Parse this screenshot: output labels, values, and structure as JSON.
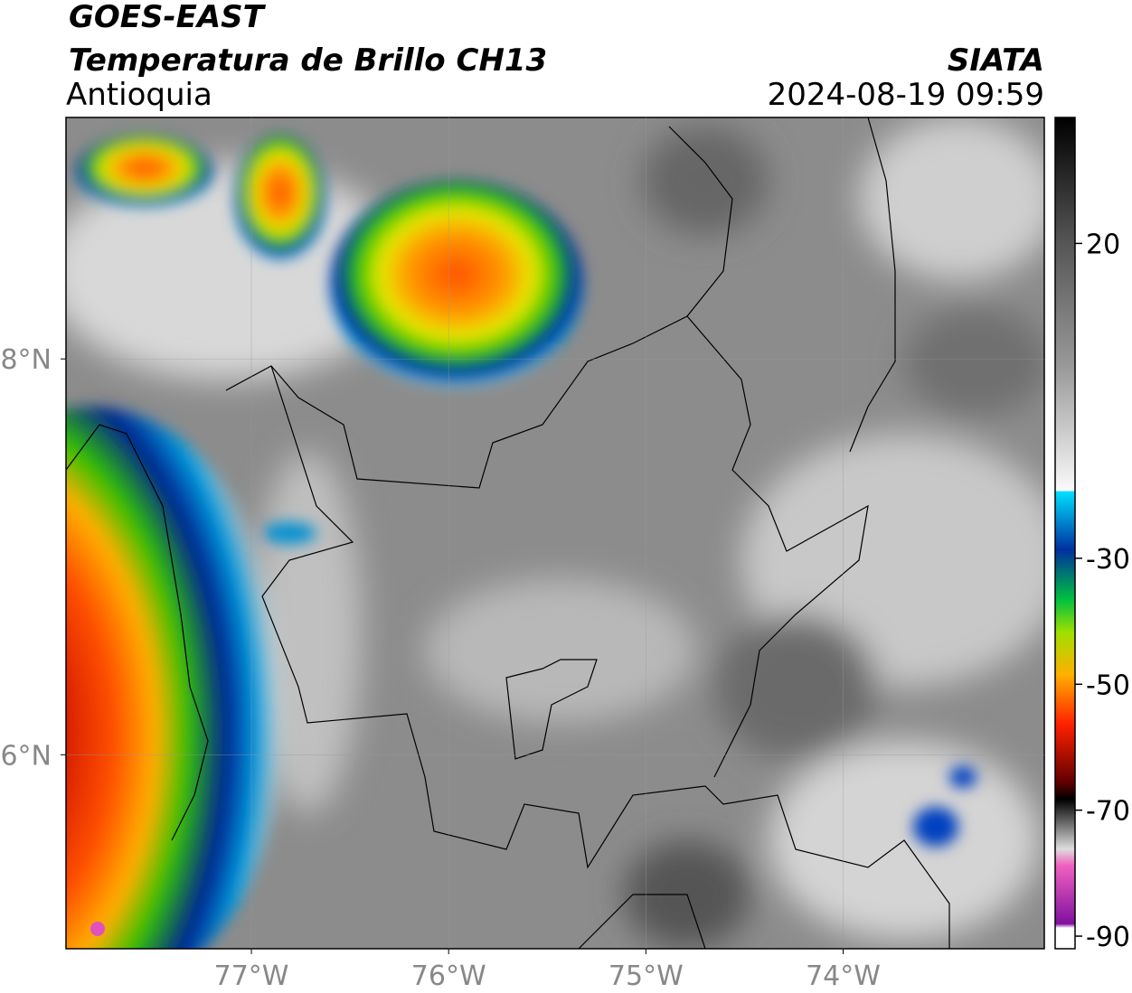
{
  "header": {
    "satellite": "GOES-EAST",
    "product": "Temperatura de Brillo CH13",
    "region": "Antioquia",
    "source": "SIATA",
    "datetime": "2024-08-19 09:59"
  },
  "map": {
    "xlim": [
      -77.94,
      -72.98
    ],
    "ylim": [
      5.02,
      9.22
    ],
    "xticks": [
      {
        "value": -77,
        "label": "77°W"
      },
      {
        "value": -76,
        "label": "76°W"
      },
      {
        "value": -75,
        "label": "75°W"
      },
      {
        "value": -74,
        "label": "74°W"
      }
    ],
    "yticks": [
      {
        "value": 8,
        "label": "8°N"
      },
      {
        "value": 6,
        "label": "6°N"
      }
    ],
    "grid": true
  },
  "colorbar": {
    "lim": [
      -92,
      40
    ],
    "ticks": [
      20,
      -30,
      -50,
      -70,
      -90
    ]
  }
}
